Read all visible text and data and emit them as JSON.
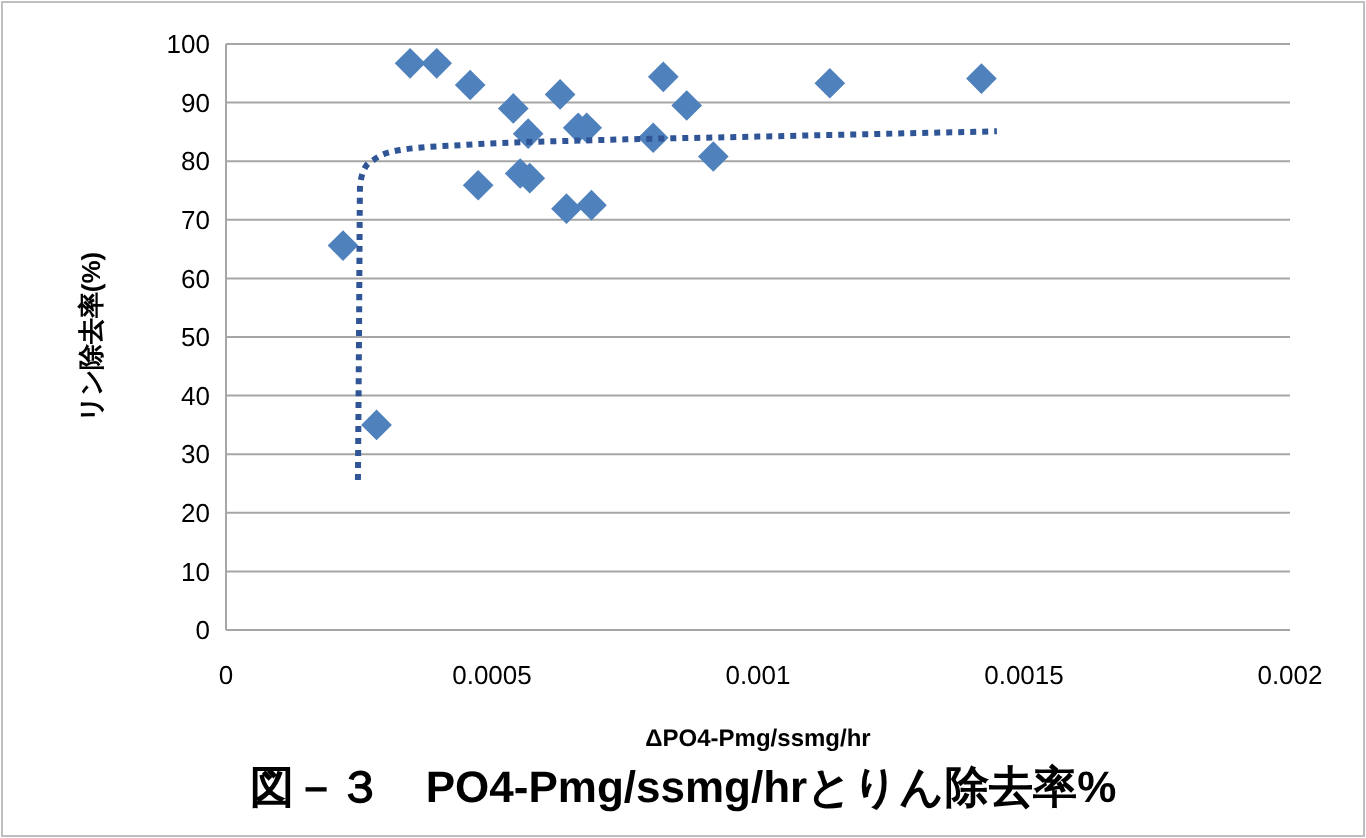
{
  "chart_data": {
    "type": "scatter",
    "title": "図－３　PO4-Pmg/ssmg/hrとりん除去率%",
    "xlabel": "ΔPO4-Pmg/ssmg/hr",
    "ylabel": "リン除去率(%)",
    "xlim": [
      0,
      0.002
    ],
    "xticks": [
      0,
      0.0005,
      0.001,
      0.0015,
      0.002
    ],
    "ylim": [
      0,
      100
    ],
    "yticks": [
      0,
      10,
      20,
      30,
      40,
      50,
      60,
      70,
      80,
      90,
      100
    ],
    "grid": "y",
    "series": [
      {
        "color": "#4f81bd",
        "marker": "diamond",
        "x": [
          0.00022,
          0.000283,
          0.000346,
          0.000396,
          0.000459,
          0.000474,
          0.00054,
          0.000568,
          0.000553,
          0.000571,
          0.000628,
          0.00064,
          0.000662,
          0.000678,
          0.000687,
          0.000803,
          0.000822,
          0.000866,
          0.000916,
          0.001135,
          0.00142
        ],
        "values": [
          65.6,
          35,
          96.7,
          96.7,
          93,
          75.9,
          89,
          84.7,
          77.9,
          77.1,
          91.4,
          71.9,
          85.7,
          85.7,
          72.5,
          84,
          94.4,
          89.5,
          80.8,
          93.3,
          94.1
        ]
      },
      {
        "type": "line",
        "color": "#2f5597",
        "line_style": "dotted",
        "marker": "none",
        "x": [
          0.000248,
          0.00025,
          0.000252,
          0.000262,
          0.000277,
          0.000327,
          0.000451,
          0.0007,
          0.001,
          0.001449
        ],
        "values": [
          25.6,
          50,
          76,
          79,
          80.2,
          81.9,
          82.8,
          83.6,
          84.2,
          85.1
        ]
      }
    ]
  }
}
